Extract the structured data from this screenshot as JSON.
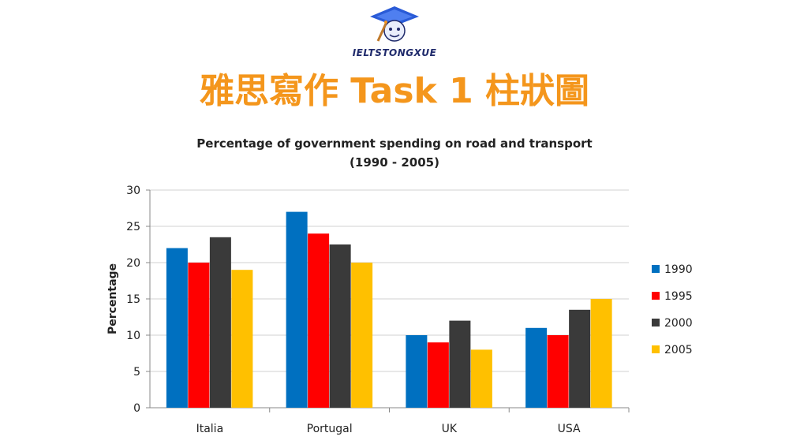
{
  "brand": "IELTSTONGXUE",
  "headline": "雅思寫作 Task 1 柱狀圖",
  "colors": {
    "headline": "#f4961c",
    "brand": "#1f2a6b",
    "icon_cap": "#2a5bd7"
  },
  "chart_data": {
    "type": "bar",
    "title": "Percentage of government spending on road and transport",
    "subtitle": "(1990 - 2005)",
    "xlabel": "",
    "ylabel": "Percentage",
    "ylim": [
      0,
      30
    ],
    "yticks": [
      0,
      5,
      10,
      15,
      20,
      25,
      30
    ],
    "grid": true,
    "legend_position": "right",
    "categories": [
      "Italia",
      "Portugal",
      "UK",
      "USA"
    ],
    "series": [
      {
        "name": "1990",
        "color": "#0070c0",
        "values": [
          22,
          27,
          10,
          11
        ]
      },
      {
        "name": "1995",
        "color": "#ff0000",
        "values": [
          20,
          24,
          9,
          10
        ]
      },
      {
        "name": "2000",
        "color": "#3a3a3a",
        "values": [
          23.5,
          22.5,
          12,
          13.5
        ]
      },
      {
        "name": "2005",
        "color": "#ffc000",
        "values": [
          19,
          20,
          8,
          15
        ]
      }
    ]
  }
}
